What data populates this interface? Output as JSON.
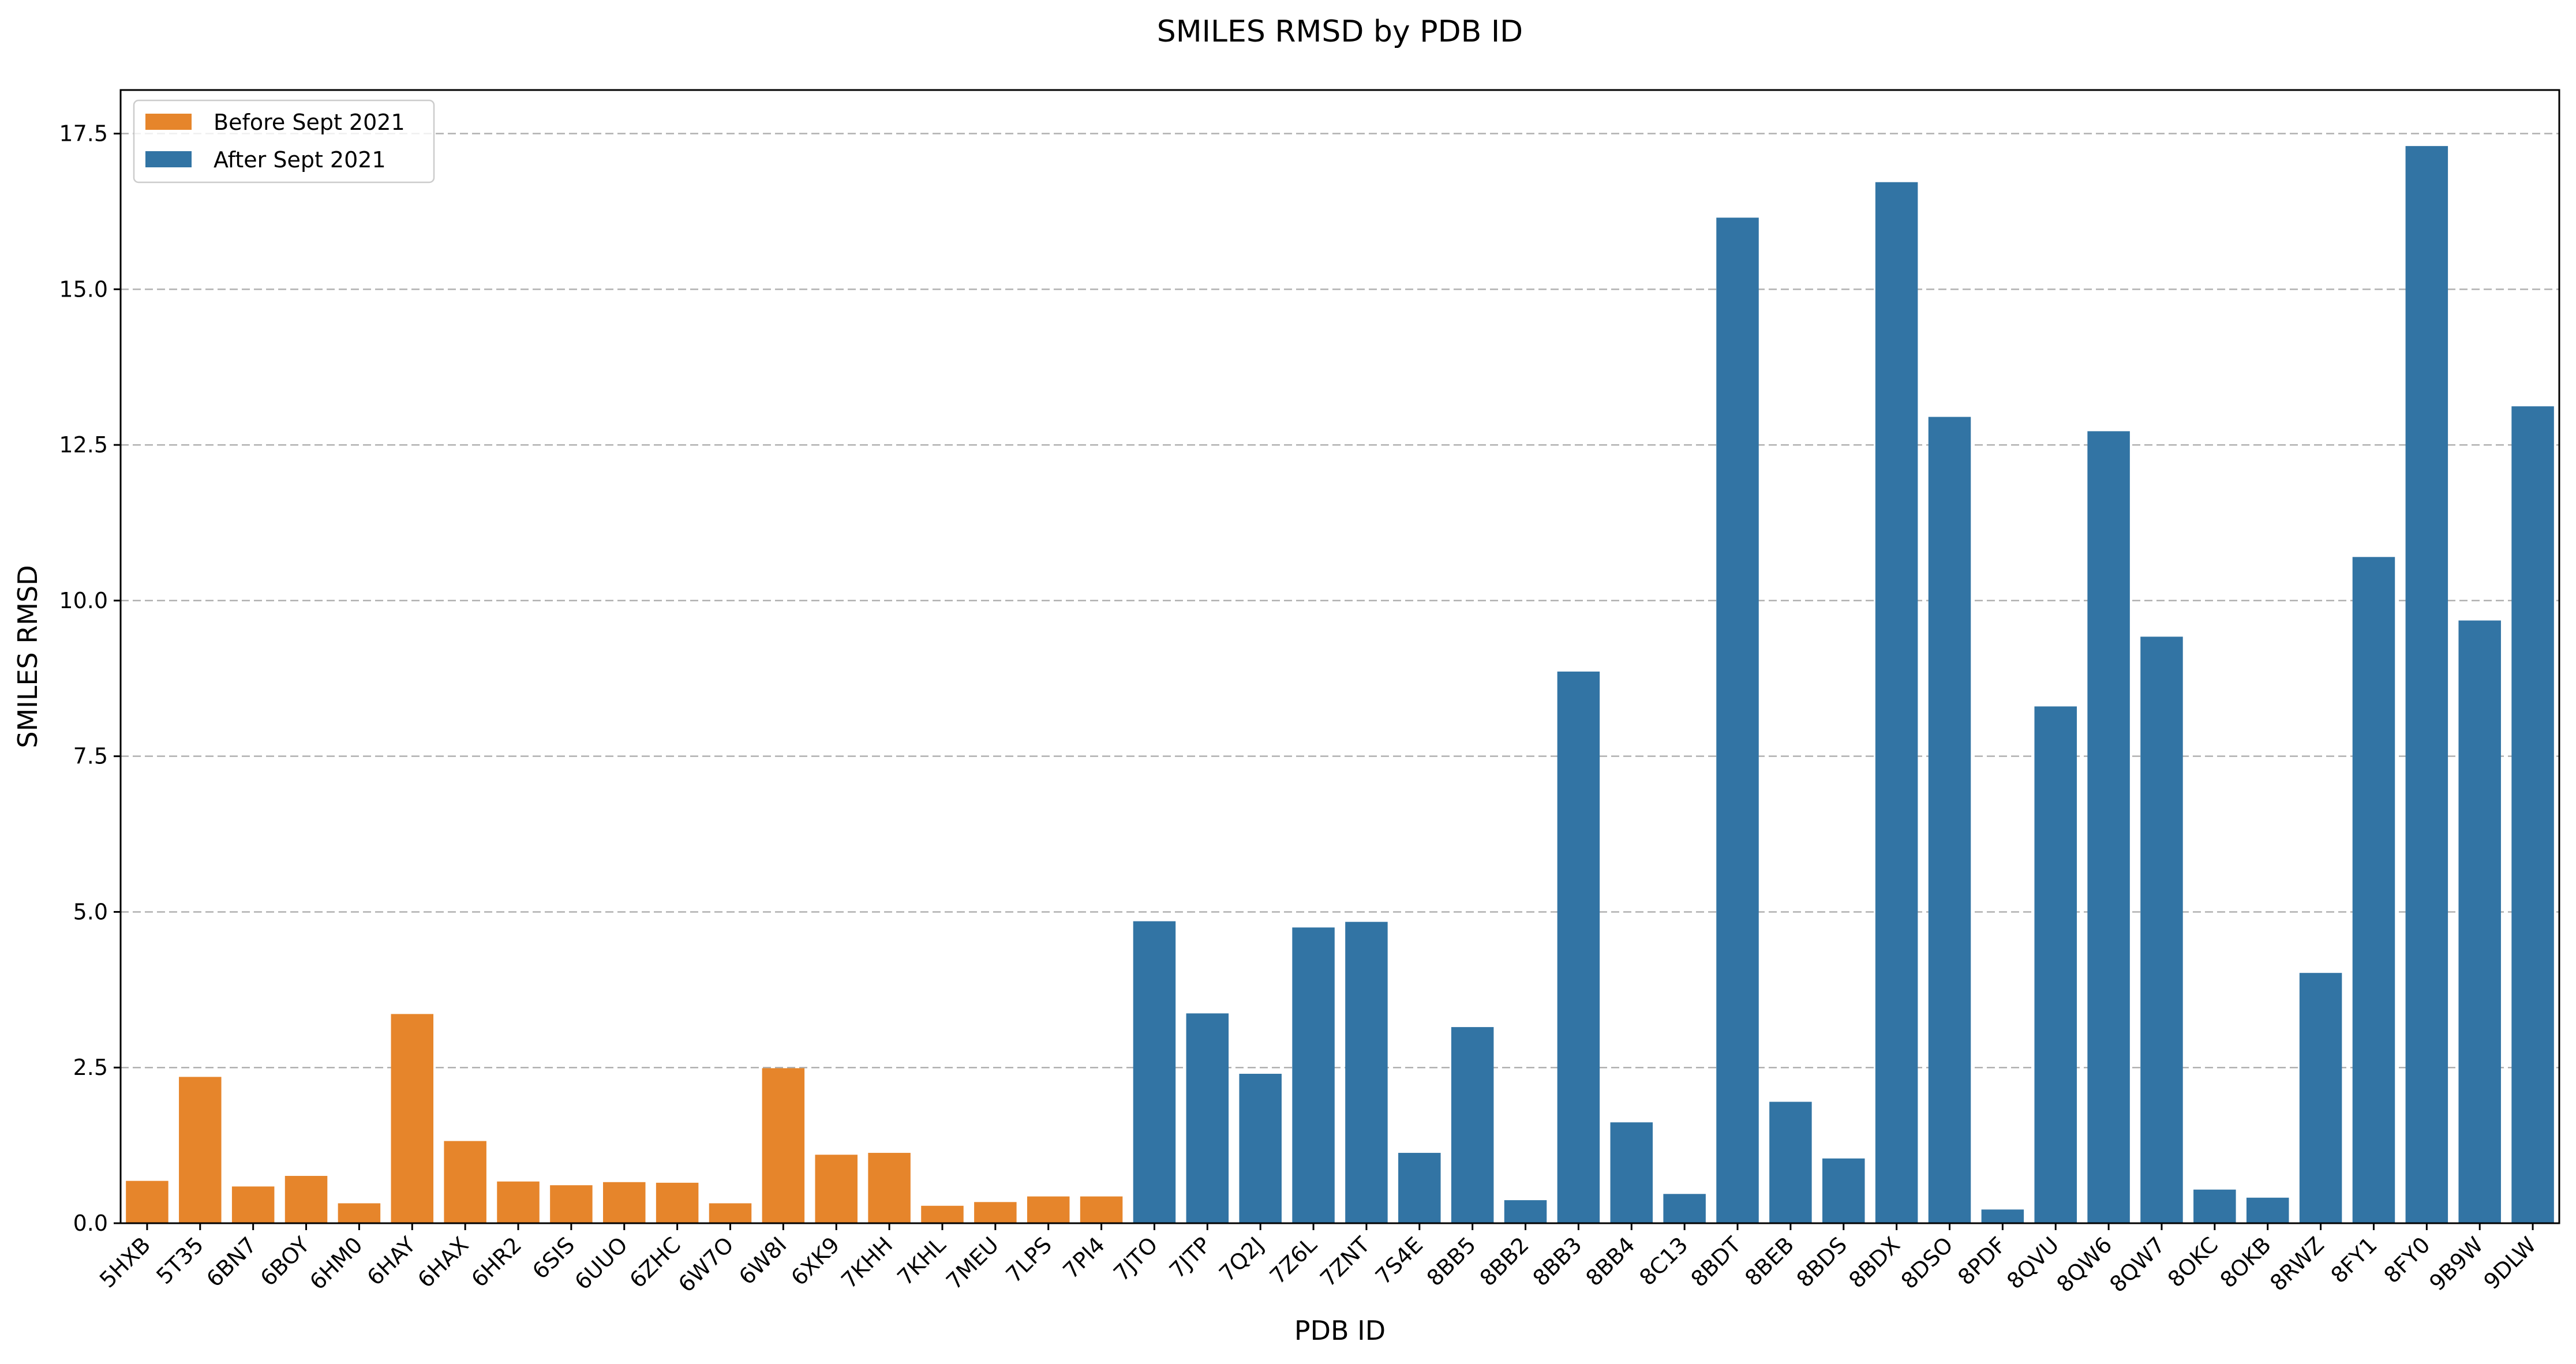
{
  "chart_data": {
    "type": "bar",
    "title": "SMILES RMSD by PDB ID",
    "xlabel": "PDB ID",
    "ylabel": "SMILES RMSD",
    "ylim": [
      0,
      18.2
    ],
    "yticks": [
      "0.0",
      "2.5",
      "5.0",
      "7.5",
      "10.0",
      "12.5",
      "15.0",
      "17.5"
    ],
    "grid": "horizontal dashed",
    "legend_position": "upper-left",
    "legend": [
      {
        "label": "Before Sept 2021",
        "color": "#e6852b"
      },
      {
        "label": "After Sept 2021",
        "color": "#3274a4"
      }
    ],
    "categories": [
      "5HXB",
      "5T35",
      "6BN7",
      "6BOY",
      "6HM0",
      "6HAY",
      "6HAX",
      "6HR2",
      "6SIS",
      "6UUO",
      "6ZHC",
      "6W7O",
      "6W8I",
      "6XK9",
      "7KHH",
      "7KHL",
      "7MEU",
      "7LPS",
      "7PI4",
      "7JTO",
      "7JTP",
      "7Q2J",
      "7Z6L",
      "7ZNT",
      "7S4E",
      "8BB5",
      "8BB2",
      "8BB3",
      "8BB4",
      "8C13",
      "8BDT",
      "8BEB",
      "8BDS",
      "8BDX",
      "8DSO",
      "8PDF",
      "8QVU",
      "8QW6",
      "8QW7",
      "8OKC",
      "8OKB",
      "8RWZ",
      "8FY1",
      "8FY0",
      "9B9W",
      "9DLW"
    ],
    "values": [
      0.68,
      2.35,
      0.59,
      0.76,
      0.32,
      3.36,
      1.32,
      0.67,
      0.61,
      0.66,
      0.65,
      0.32,
      2.49,
      1.1,
      1.13,
      0.28,
      0.34,
      0.43,
      0.43,
      4.85,
      3.37,
      2.4,
      4.75,
      4.84,
      1.13,
      3.15,
      0.37,
      8.86,
      1.62,
      0.47,
      16.15,
      1.95,
      1.04,
      16.72,
      12.95,
      0.22,
      8.3,
      12.72,
      9.42,
      0.54,
      0.41,
      4.02,
      10.7,
      17.3,
      9.68,
      13.12
    ],
    "groups": [
      "before",
      "before",
      "before",
      "before",
      "before",
      "before",
      "before",
      "before",
      "before",
      "before",
      "before",
      "before",
      "before",
      "before",
      "before",
      "before",
      "before",
      "before",
      "before",
      "after",
      "after",
      "after",
      "after",
      "after",
      "after",
      "after",
      "after",
      "after",
      "after",
      "after",
      "after",
      "after",
      "after",
      "after",
      "after",
      "after",
      "after",
      "after",
      "after",
      "after",
      "after",
      "after",
      "after",
      "after",
      "after",
      "after"
    ]
  }
}
